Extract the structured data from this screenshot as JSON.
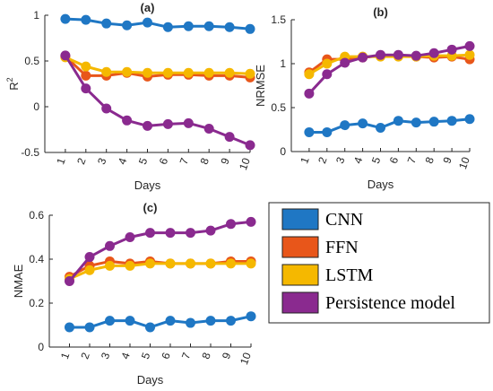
{
  "colors": {
    "CNN": "#1f77c4",
    "FFN": "#e8561a",
    "LSTM": "#f5b800",
    "Persistence model": "#8a2a8f"
  },
  "legend": {
    "entries": [
      "CNN",
      "FFN",
      "LSTM",
      "Persistence model"
    ]
  },
  "chart_data": [
    {
      "type": "line",
      "title": "(a)",
      "xlabel": "Days",
      "ylabel": "R2",
      "ylabel_main": "R",
      "ylabel_sup": "2",
      "x": [
        1,
        2,
        3,
        4,
        5,
        6,
        7,
        8,
        9,
        10
      ],
      "xlim": [
        0,
        10
      ],
      "ylim": [
        -0.5,
        1
      ],
      "yticks": [
        -0.5,
        0,
        0.5,
        1
      ],
      "ytick_labels": [
        "-0.5",
        "0",
        "0.5",
        "1"
      ],
      "grid": false,
      "series": [
        {
          "name": "CNN",
          "values": [
            0.96,
            0.95,
            0.91,
            0.89,
            0.92,
            0.87,
            0.88,
            0.88,
            0.87,
            0.85
          ]
        },
        {
          "name": "FFN",
          "values": [
            0.55,
            0.34,
            0.34,
            0.37,
            0.33,
            0.35,
            0.35,
            0.34,
            0.34,
            0.32
          ]
        },
        {
          "name": "LSTM",
          "values": [
            0.54,
            0.44,
            0.38,
            0.38,
            0.37,
            0.37,
            0.37,
            0.37,
            0.37,
            0.36
          ]
        },
        {
          "name": "Persistence model",
          "values": [
            0.56,
            0.2,
            -0.02,
            -0.15,
            -0.21,
            -0.19,
            -0.18,
            -0.24,
            -0.33,
            -0.42
          ]
        }
      ]
    },
    {
      "type": "line",
      "title": "(b)",
      "xlabel": "Days",
      "ylabel": "NRMSE",
      "x": [
        1,
        2,
        3,
        4,
        5,
        6,
        7,
        8,
        9,
        10
      ],
      "xlim": [
        0,
        10
      ],
      "ylim": [
        0,
        1.5
      ],
      "yticks": [
        0,
        0.5,
        1,
        1.5
      ],
      "ytick_labels": [
        "0",
        "0.5",
        "1",
        "1.5"
      ],
      "grid": false,
      "series": [
        {
          "name": "CNN",
          "values": [
            0.22,
            0.22,
            0.3,
            0.32,
            0.27,
            0.35,
            0.33,
            0.34,
            0.35,
            0.37
          ]
        },
        {
          "name": "FFN",
          "values": [
            0.9,
            1.05,
            1.05,
            1.07,
            1.09,
            1.09,
            1.08,
            1.07,
            1.08,
            1.05
          ]
        },
        {
          "name": "LSTM",
          "values": [
            0.88,
            1.0,
            1.08,
            1.08,
            1.08,
            1.08,
            1.08,
            1.09,
            1.09,
            1.1
          ]
        },
        {
          "name": "Persistence model",
          "values": [
            0.66,
            0.88,
            1.01,
            1.07,
            1.1,
            1.1,
            1.09,
            1.12,
            1.16,
            1.2
          ]
        }
      ]
    },
    {
      "type": "line",
      "title": "(c)",
      "xlabel": "Days",
      "ylabel": "NMAE",
      "x": [
        1,
        2,
        3,
        4,
        5,
        6,
        7,
        8,
        9,
        10
      ],
      "xlim": [
        0,
        10
      ],
      "ylim": [
        0,
        0.6
      ],
      "yticks": [
        0,
        0.2,
        0.4,
        0.6
      ],
      "ytick_labels": [
        "0",
        "0.2",
        "0.4",
        "0.6"
      ],
      "grid": false,
      "series": [
        {
          "name": "CNN",
          "values": [
            0.09,
            0.09,
            0.12,
            0.12,
            0.09,
            0.12,
            0.11,
            0.12,
            0.12,
            0.14
          ]
        },
        {
          "name": "FFN",
          "values": [
            0.32,
            0.37,
            0.39,
            0.38,
            0.39,
            0.38,
            0.38,
            0.38,
            0.39,
            0.39
          ]
        },
        {
          "name": "LSTM",
          "values": [
            0.31,
            0.35,
            0.37,
            0.37,
            0.38,
            0.38,
            0.38,
            0.38,
            0.38,
            0.38
          ]
        },
        {
          "name": "Persistence model",
          "values": [
            0.3,
            0.41,
            0.46,
            0.5,
            0.52,
            0.52,
            0.52,
            0.53,
            0.56,
            0.57
          ]
        }
      ]
    }
  ]
}
